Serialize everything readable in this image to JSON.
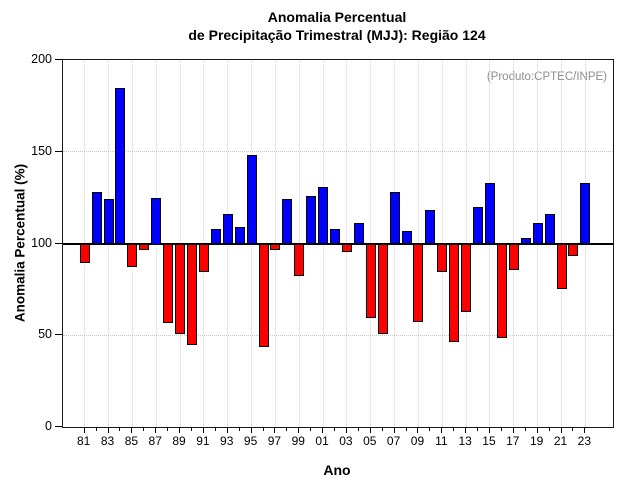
{
  "title": {
    "line1": "Anomalia Percentual",
    "line2": "de Precipitação Trimestral (MJJ): Região 124"
  },
  "annotation": "(Produto:CPTEC/INPE)",
  "chart_data": {
    "type": "bar",
    "title": "Anomalia Percentual de Precipitação Trimestral (MJJ): Região 124",
    "xlabel": "Ano",
    "ylabel": "Anomalia Percentual (%)",
    "ylim": [
      0,
      200
    ],
    "yticks": [
      0,
      50,
      100,
      150,
      200
    ],
    "baseline": 100,
    "grid_h_dotted_at": [
      50,
      150
    ],
    "grid_v_dotted_at_labeled_years": true,
    "legend_position": "none",
    "colors": {
      "above_baseline": "#0000FF",
      "below_baseline": "#FF0000",
      "bar_outline": "#000000",
      "annotation_gray": "#8e8e8e"
    },
    "x_tick_labels": [
      "81",
      "83",
      "85",
      "87",
      "89",
      "91",
      "93",
      "95",
      "97",
      "99",
      "01",
      "03",
      "05",
      "07",
      "09",
      "11",
      "13",
      "15",
      "17",
      "19",
      "21",
      "23"
    ],
    "years": [
      1981,
      1982,
      1983,
      1984,
      1985,
      1986,
      1987,
      1988,
      1989,
      1990,
      1991,
      1992,
      1993,
      1994,
      1995,
      1996,
      1997,
      1998,
      1999,
      2000,
      2001,
      2002,
      2003,
      2004,
      2005,
      2006,
      2007,
      2008,
      2009,
      2010,
      2011,
      2012,
      2013,
      2014,
      2015,
      2016,
      2017,
      2018,
      2019,
      2020,
      2021,
      2022,
      2023
    ],
    "values": [
      90,
      128,
      124,
      185,
      88,
      97,
      125,
      57,
      51,
      45,
      85,
      108,
      116,
      109,
      148,
      44,
      97,
      124,
      83,
      126,
      131,
      108,
      96,
      111,
      60,
      51,
      128,
      107,
      58,
      118,
      85,
      47,
      63,
      120,
      133,
      49,
      86,
      103,
      111,
      116,
      76,
      94,
      133
    ]
  }
}
